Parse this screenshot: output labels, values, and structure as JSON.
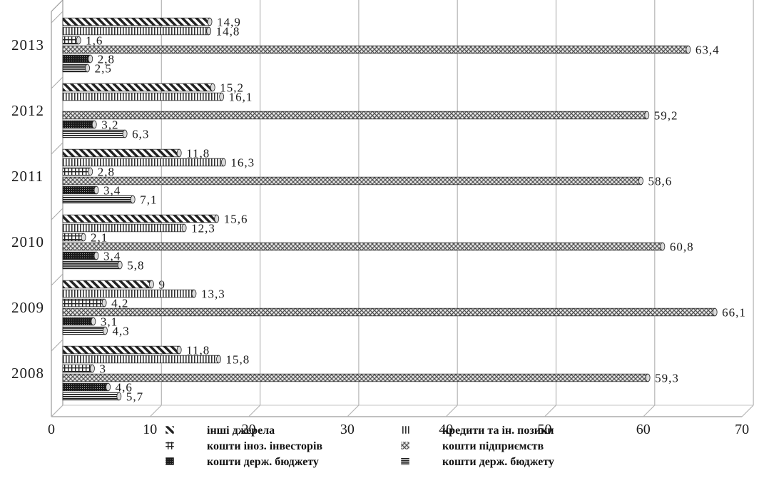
{
  "chart_data": {
    "type": "bar",
    "orientation": "horizontal",
    "categories": [
      "2008",
      "2009",
      "2010",
      "2011",
      "2012",
      "2013"
    ],
    "series": [
      {
        "name": "кошти держ. бюджету",
        "key": "s_budget_a",
        "pattern": "hlines",
        "values": [
          5.7,
          4.3,
          5.8,
          7.1,
          6.3,
          2.5
        ]
      },
      {
        "name": "кошти держ. бюджету",
        "key": "s_budget_b",
        "pattern": "dense",
        "values": [
          4.6,
          3.1,
          3.4,
          3.4,
          3.2,
          2.8
        ]
      },
      {
        "name": "кошти підприємств",
        "key": "s_enterprises",
        "pattern": "cross",
        "values": [
          59.3,
          66.1,
          60.8,
          58.6,
          59.2,
          63.4
        ]
      },
      {
        "name": "кошти іноземн. інвесторів",
        "key": "s_foreign",
        "pattern": "grid",
        "values": [
          3,
          4.2,
          2.1,
          2.8,
          0,
          1.6
        ]
      },
      {
        "name": "кредити та ін. позики",
        "key": "s_credits",
        "pattern": "vlines",
        "values": [
          15.8,
          13.3,
          12.3,
          16.3,
          16.1,
          14.8
        ]
      },
      {
        "name": "інші джерела",
        "key": "s_other",
        "pattern": "diag",
        "values": [
          11.8,
          9,
          15.6,
          11.8,
          15.2,
          14.9
        ]
      }
    ],
    "value_labels": [
      [
        "5,7",
        "4,3",
        "5,8",
        "7,1",
        "6,3",
        "2,5"
      ],
      [
        "4,6",
        "3,1",
        "3,4",
        "3,4",
        "3,2",
        "2,8"
      ],
      [
        "59,3",
        "66,1",
        "60,8",
        "58,6",
        "59,2",
        "63,4"
      ],
      [
        "3",
        "4,2",
        "2,1",
        "2,8",
        "",
        "1,6"
      ],
      [
        "15,8",
        "13,3",
        "12,3",
        "16,3",
        "16,1",
        "14,8"
      ],
      [
        "11,8",
        "9",
        "15,6",
        "11,8",
        "15,2",
        "14,9"
      ]
    ],
    "xlim": [
      0,
      70
    ],
    "x_ticks": [
      "0",
      "10",
      "20",
      "30",
      "40",
      "50",
      "60",
      "70"
    ],
    "x_tick_values": [
      0,
      10,
      20,
      30,
      40,
      50,
      60,
      70
    ],
    "title": "",
    "xlabel": "",
    "ylabel": "",
    "grid": true,
    "legend_position": "bottom",
    "legend": [
      {
        "label": "інші джерела",
        "series_key": "s_other"
      },
      {
        "label": "кредити та ін. позики",
        "series_key": "s_credits"
      },
      {
        "label": "кошти іноз. інвесторів",
        "series_key": "s_foreign"
      },
      {
        "label": "кошти підприємств",
        "series_key": "s_enterprises"
      },
      {
        "label": "кошти держ. бюджету",
        "series_key": "s_budget_b"
      },
      {
        "label": "кошти держ. бюджету",
        "series_key": "s_budget_a"
      }
    ]
  }
}
